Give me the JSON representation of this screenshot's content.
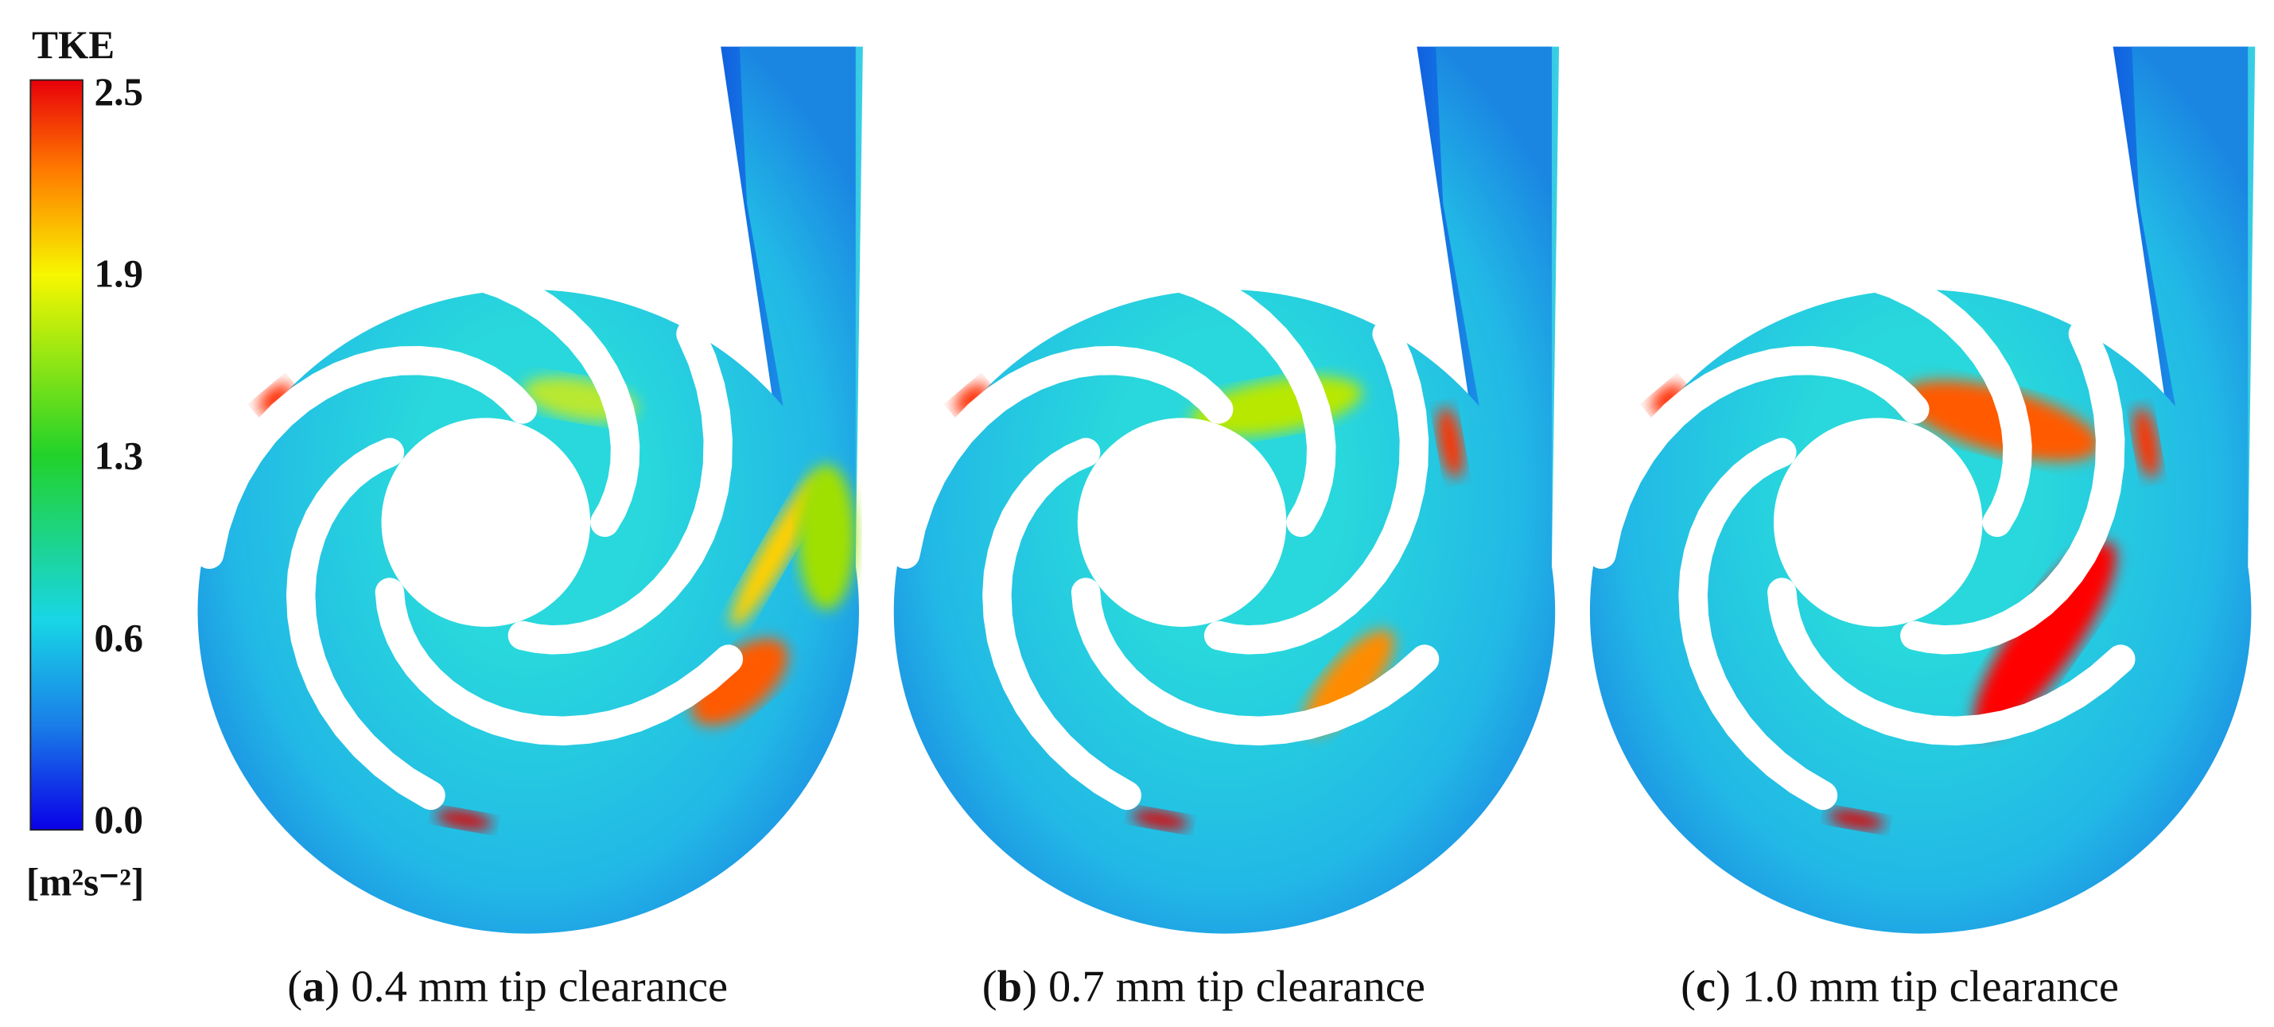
{
  "colorbar": {
    "title": "TKE",
    "ticks": [
      "2.5",
      "1.9",
      "1.3",
      "0.6",
      "0.0"
    ],
    "unit": "[m²s⁻²]"
  },
  "panels": [
    {
      "caption": {
        "open": "(",
        "letter": "a",
        "rest": ") 0.4 mm tip clearance"
      }
    },
    {
      "caption": {
        "open": "(",
        "letter": "b",
        "rest": ") 0.7 mm tip clearance"
      }
    },
    {
      "caption": {
        "open": "(",
        "letter": "c",
        "rest": ") 1.0 mm tip clearance"
      }
    }
  ]
}
